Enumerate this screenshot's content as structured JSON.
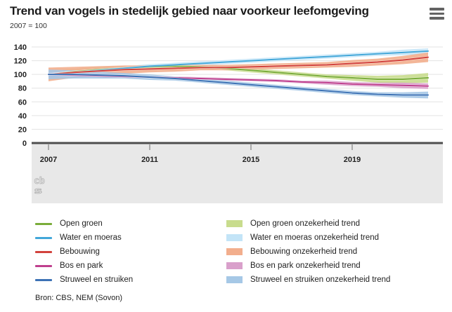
{
  "header": {
    "title": "Trend van vogels in stedelijk gebied naar voorkeur leefomgeving",
    "subtitle": "2007 = 100",
    "menu_icon": "hamburger-icon"
  },
  "source": "Bron: CBS, NEM (Sovon)",
  "colors": {
    "grid": "#e3e3e3",
    "zero_axis": "#4d4d4d",
    "axis_band_bg": "#e8e8e8",
    "tick": "#8a8a8a",
    "axis_text": "#222222",
    "menu_icon": "#636363",
    "logo": "#b3b3b3"
  },
  "chart_data": {
    "type": "line",
    "title": "Trend van vogels in stedelijk gebied naar voorkeur leefomgeving",
    "unit_note": "2007 = 100",
    "xlabel": "",
    "ylabel": "",
    "grid": true,
    "legend_position": "bottom",
    "ylim": [
      0,
      140
    ],
    "y_ticks": [
      0,
      20,
      40,
      60,
      80,
      100,
      120,
      140
    ],
    "x": [
      2007,
      2008,
      2009,
      2010,
      2011,
      2012,
      2013,
      2014,
      2015,
      2016,
      2017,
      2018,
      2019,
      2020,
      2021,
      2022
    ],
    "x_ticks": [
      2007,
      2011,
      2015,
      2019
    ],
    "series": [
      {
        "name": "Open groen",
        "band_label": "Open groen onzekerheid trend",
        "color": "#7aad3a",
        "band_color": "#c8dc8d",
        "values": [
          100,
          104,
          107,
          109,
          111,
          112,
          111,
          109,
          106,
          103,
          100,
          97,
          95,
          93,
          93,
          95
        ],
        "band_halfwidth": [
          5,
          4,
          4,
          3,
          3,
          3,
          3,
          3,
          3,
          3,
          3,
          3,
          4,
          5,
          6,
          7
        ]
      },
      {
        "name": "Water en moeras",
        "band_label": "Water en moeras onzekerheid trend",
        "color": "#42a7d9",
        "band_color": "#c3e4f7",
        "values": [
          100,
          103,
          106,
          109,
          112,
          114,
          116,
          118,
          120,
          122,
          124,
          126,
          128,
          130,
          132,
          134
        ],
        "band_halfwidth": [
          4,
          3,
          3,
          3,
          3,
          3,
          3,
          3,
          3,
          3,
          3,
          3,
          3,
          3,
          4,
          4
        ]
      },
      {
        "name": "Bebouwing",
        "band_label": "Bebouwing onzekerheid trend",
        "color": "#d2423c",
        "band_color": "#f2ae8d",
        "values": [
          100,
          103,
          105,
          107,
          108,
          109,
          110,
          110,
          111,
          112,
          113,
          114,
          116,
          118,
          121,
          125
        ],
        "band_halfwidth": [
          10,
          8,
          7,
          6,
          5,
          5,
          4,
          4,
          4,
          4,
          4,
          4,
          5,
          5,
          6,
          7
        ]
      },
      {
        "name": "Bos en park",
        "band_label": "Bos en park onzekerheid trend",
        "color": "#bf3f8e",
        "band_color": "#d9a0cb",
        "values": [
          100,
          99,
          98,
          97,
          96,
          95,
          94,
          93,
          92,
          91,
          89,
          88,
          86,
          85,
          84,
          83
        ],
        "band_halfwidth": [
          4,
          3,
          3,
          2,
          2,
          2,
          2,
          2,
          2,
          2,
          2,
          3,
          3,
          3,
          4,
          4
        ]
      },
      {
        "name": "Struweel en struiken",
        "band_label": "Struweel en struiken onzekerheid trend",
        "color": "#3c72b5",
        "band_color": "#a6c8e6",
        "values": [
          100,
          100,
          99,
          98,
          96,
          94,
          91,
          88,
          85,
          82,
          79,
          76,
          73,
          71,
          70,
          70
        ],
        "band_halfwidth": [
          7,
          6,
          5,
          4,
          4,
          3,
          3,
          3,
          3,
          3,
          3,
          3,
          3,
          3,
          4,
          5
        ]
      }
    ]
  }
}
